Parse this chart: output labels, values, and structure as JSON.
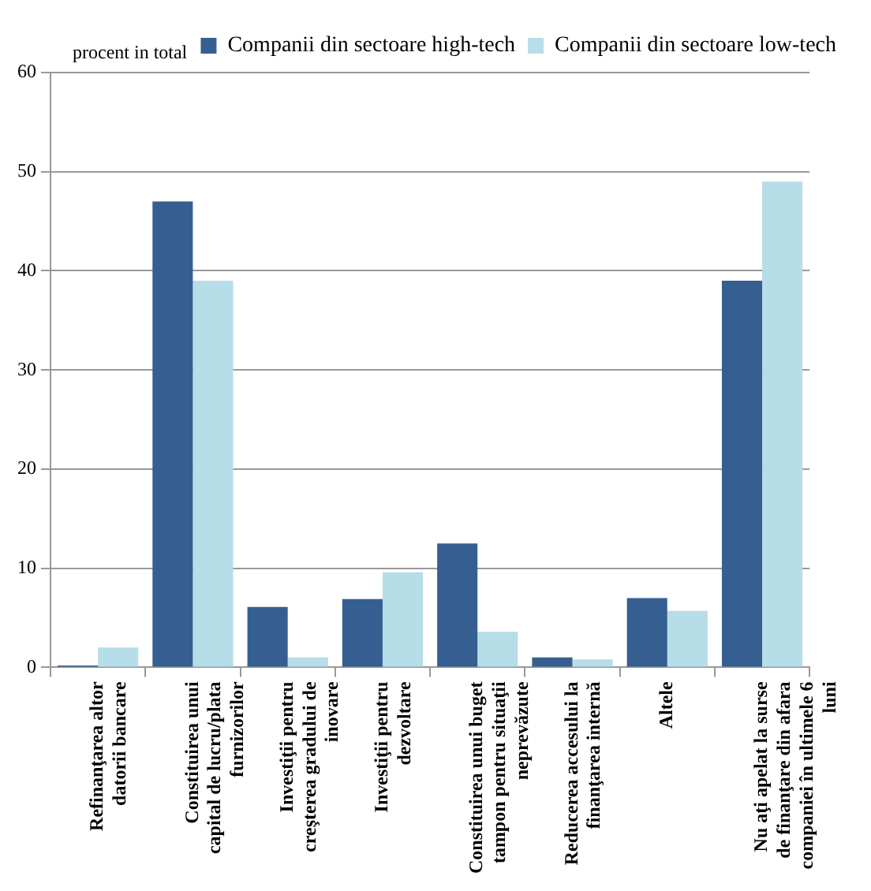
{
  "chart_data": {
    "type": "bar",
    "ylabel": "procent in total",
    "categories": [
      "Refinanţarea altor datorii bancare",
      "Constituirea unui capital de lucru/plata furnizorilor",
      "Investiţii pentru creşterea gradului de inovare",
      "Investiţii pentru dezvoltare",
      "Constituirea unui buget tampon pentru situaţii neprevăzute",
      "Reducerea accesului la finanţarea internă",
      "Altele",
      "Nu aţi apelat la surse de finanţare din afara companiei în ultimele 6 luni"
    ],
    "series": [
      {
        "name": "Companii din sectoare high-tech",
        "color": "#365f91",
        "values": [
          0.2,
          47,
          6.1,
          6.9,
          12.5,
          1.0,
          7.0,
          39
        ]
      },
      {
        "name": "Companii din sectoare low-tech",
        "color": "#b7dde8",
        "values": [
          2.0,
          39,
          1.0,
          9.6,
          3.6,
          0.8,
          5.7,
          49
        ]
      }
    ],
    "ylim": [
      0,
      60
    ],
    "yticks": [
      0,
      10,
      20,
      30,
      40,
      50,
      60
    ],
    "grid": "y",
    "legend": "top right"
  }
}
